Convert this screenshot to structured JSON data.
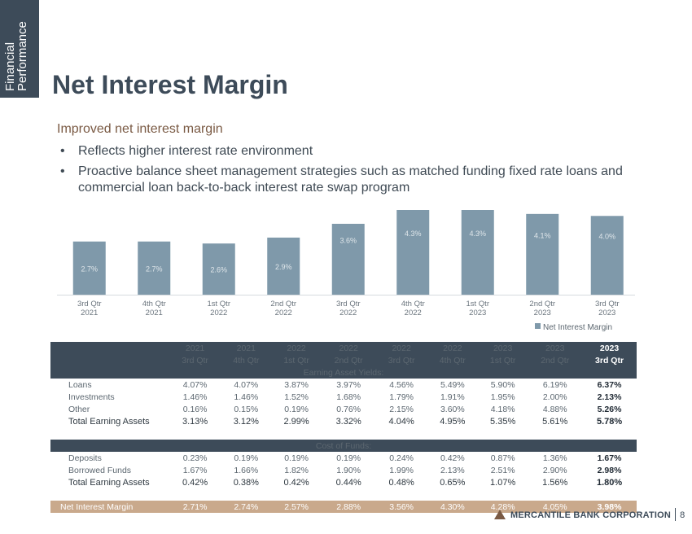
{
  "side_tab": {
    "line1": "Financial",
    "line2": "Performance"
  },
  "title": "Net Interest Margin",
  "subtitle": "Improved net interest margin",
  "bullets": [
    "Reflects higher interest rate environment",
    "Proactive balance sheet management strategies such as matched funding fixed rate loans and commercial loan back-to-back interest rate swap program"
  ],
  "chart_data": {
    "type": "bar",
    "categories": [
      "3rd Qtr 2021",
      "4th Qtr 2021",
      "1st Qtr 2022",
      "2nd Qtr 2022",
      "3rd Qtr 2022",
      "4th Qtr 2022",
      "1st Qtr 2023",
      "2nd Qtr 2023",
      "3rd Qtr 2023"
    ],
    "category_lines": [
      [
        "3rd Qtr",
        "2021"
      ],
      [
        "4th Qtr",
        "2021"
      ],
      [
        "1st Qtr",
        "2022"
      ],
      [
        "2nd Qtr",
        "2022"
      ],
      [
        "3rd Qtr",
        "2022"
      ],
      [
        "4th Qtr",
        "2022"
      ],
      [
        "1st Qtr",
        "2023"
      ],
      [
        "2nd Qtr",
        "2023"
      ],
      [
        "3rd Qtr",
        "2023"
      ]
    ],
    "series": [
      {
        "name": "Net Interest Margin",
        "values": [
          2.7,
          2.7,
          2.6,
          2.9,
          3.6,
          4.3,
          4.3,
          4.1,
          4.0
        ],
        "labels": [
          "2.7%",
          "2.7%",
          "2.6%",
          "2.9%",
          "3.6%",
          "4.3%",
          "4.3%",
          "4.1%",
          "4.0%"
        ],
        "color": "#7f99aa"
      }
    ],
    "ylim": [
      0,
      4.3
    ],
    "legend_position": "bottom-right",
    "grid": false
  },
  "table": {
    "years": [
      "2021",
      "2021",
      "2022",
      "2022",
      "2022",
      "2022",
      "2023",
      "2023",
      "2023"
    ],
    "quarters": [
      "3rd Qtr",
      "4th Qtr",
      "1st Qtr",
      "2nd Qtr",
      "3rd Qtr",
      "4th Qtr",
      "1st Qtr",
      "2nd Qtr",
      "3rd Qtr"
    ],
    "sections": [
      {
        "header": "Earning Asset Yields:",
        "rows": [
          {
            "label": "Loans",
            "values": [
              "4.07%",
              "4.07%",
              "3.87%",
              "3.97%",
              "4.56%",
              "5.49%",
              "5.90%",
              "6.19%",
              "6.37%"
            ]
          },
          {
            "label": "Investments",
            "values": [
              "1.46%",
              "1.46%",
              "1.52%",
              "1.68%",
              "1.79%",
              "1.91%",
              "1.95%",
              "2.00%",
              "2.13%"
            ]
          },
          {
            "label": "Other",
            "values": [
              "0.16%",
              "0.15%",
              "0.19%",
              "0.76%",
              "2.15%",
              "3.60%",
              "4.18%",
              "4.88%",
              "5.26%"
            ]
          },
          {
            "label": "Total Earning Assets",
            "values": [
              "3.13%",
              "3.12%",
              "2.99%",
              "3.32%",
              "4.04%",
              "4.95%",
              "5.35%",
              "5.61%",
              "5.78%"
            ],
            "total": true
          }
        ]
      },
      {
        "header": "Cost of Funds:",
        "rows": [
          {
            "label": "Deposits",
            "values": [
              "0.23%",
              "0.19%",
              "0.19%",
              "0.19%",
              "0.24%",
              "0.42%",
              "0.87%",
              "1.36%",
              "1.67%"
            ]
          },
          {
            "label": "Borrowed Funds",
            "values": [
              "1.67%",
              "1.66%",
              "1.82%",
              "1.90%",
              "1.99%",
              "2.13%",
              "2.51%",
              "2.90%",
              "2.98%"
            ]
          },
          {
            "label": "Total Earning Assets",
            "values": [
              "0.42%",
              "0.38%",
              "0.42%",
              "0.44%",
              "0.48%",
              "0.65%",
              "1.07%",
              "1.56%",
              "1.80%"
            ],
            "total": true
          }
        ]
      }
    ],
    "nim": {
      "label": "Net Interest Margin",
      "values": [
        "2.71%",
        "2.74%",
        "2.57%",
        "2.88%",
        "3.56%",
        "4.30%",
        "4.28%",
        "4.05%",
        "3.98%"
      ]
    }
  },
  "footer": {
    "company": "MERCANTILE BANK CORPORATION",
    "page": "8"
  }
}
